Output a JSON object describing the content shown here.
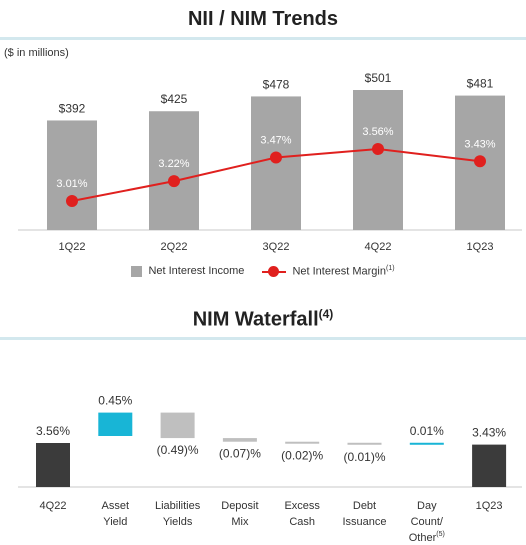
{
  "nii_title": "NII / NIM Trends",
  "nim_waterfall_title": "NIM Waterfall",
  "nim_waterfall_title_sup": "(4)",
  "units_note": "($ in millions)",
  "legend": {
    "nii_label": "Net Interest Income",
    "nim_label": "Net Interest Margin",
    "nim_sup": "(1)"
  },
  "colors": {
    "bar_gray": "#a6a6a6",
    "line_red": "#e0201e",
    "dark_bar": "#3b3b3b",
    "positive": "#18b5d6",
    "negative": "#bfbfbf",
    "rule": "#d3e8ee"
  },
  "chart_data": [
    {
      "type": "bar",
      "title": "NII / NIM Trends",
      "categories": [
        "1Q22",
        "2Q22",
        "3Q22",
        "4Q22",
        "1Q23"
      ],
      "series": [
        {
          "name": "Net Interest Income",
          "values": [
            392,
            425,
            478,
            501,
            481
          ],
          "labels": [
            "$392",
            "$425",
            "$478",
            "$501",
            "$481"
          ]
        },
        {
          "name": "Net Interest Margin",
          "type": "line",
          "values": [
            3.01,
            3.22,
            3.47,
            3.56,
            3.43
          ],
          "labels": [
            "3.01%",
            "3.22%",
            "3.47%",
            "3.56%",
            "3.43%"
          ]
        }
      ],
      "legend": "bottom-center",
      "grid": false
    },
    {
      "type": "bar",
      "subtype": "waterfall",
      "title": "NIM Waterfall",
      "steps": [
        {
          "label": "4Q22",
          "value": 3.56,
          "kind": "total",
          "text": "3.56%"
        },
        {
          "label": "Asset Yield",
          "lines": [
            "Asset",
            "Yield"
          ],
          "value": 0.45,
          "kind": "delta",
          "text": "0.45%"
        },
        {
          "label": "Liabilities Yields",
          "lines": [
            "Liabilities",
            "Yields"
          ],
          "value": -0.49,
          "kind": "delta",
          "text": "(0.49)%"
        },
        {
          "label": "Deposit Mix",
          "lines": [
            "Deposit",
            "Mix"
          ],
          "value": -0.07,
          "kind": "delta",
          "text": "(0.07)%"
        },
        {
          "label": "Excess Cash",
          "lines": [
            "Excess",
            "Cash"
          ],
          "value": -0.02,
          "kind": "delta",
          "text": "(0.02)%"
        },
        {
          "label": "Debt Issuance",
          "lines": [
            "Debt",
            "Issuance"
          ],
          "value": -0.01,
          "kind": "delta",
          "text": "(0.01)%"
        },
        {
          "label": "Day Count/ Other",
          "lines": [
            "Day",
            "Count/",
            "Other"
          ],
          "sup": "(5)",
          "value": 0.01,
          "kind": "delta",
          "text": "0.01%"
        },
        {
          "label": "1Q23",
          "value": 3.43,
          "kind": "total",
          "text": "3.43%"
        }
      ]
    }
  ]
}
